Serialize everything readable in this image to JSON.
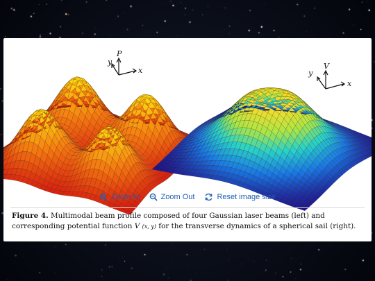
{
  "figure": {
    "left_plot": {
      "axes": {
        "y": "y",
        "z": "P",
        "x": "x"
      }
    },
    "right_plot": {
      "axes": {
        "y": "y",
        "z": "V",
        "x": "x"
      }
    }
  },
  "toolbar": {
    "zoom_in_label": "Zoom In",
    "zoom_out_label": "Zoom Out",
    "reset_label": "Reset image size",
    "link_color": "#1f5fb5"
  },
  "caption": {
    "label": "Figure 4.",
    "text_before": "Multimodal beam profile composed of four Gaussian laser beams (left) and corresponding potential function ",
    "math": "V",
    "math_args": "(x, y)",
    "text_after": " for the transverse dynamics of a spherical sail (right)."
  },
  "icons": {
    "zoom_in": "zoom-in-icon",
    "zoom_out": "zoom-out-icon",
    "reset": "reset-icon"
  }
}
